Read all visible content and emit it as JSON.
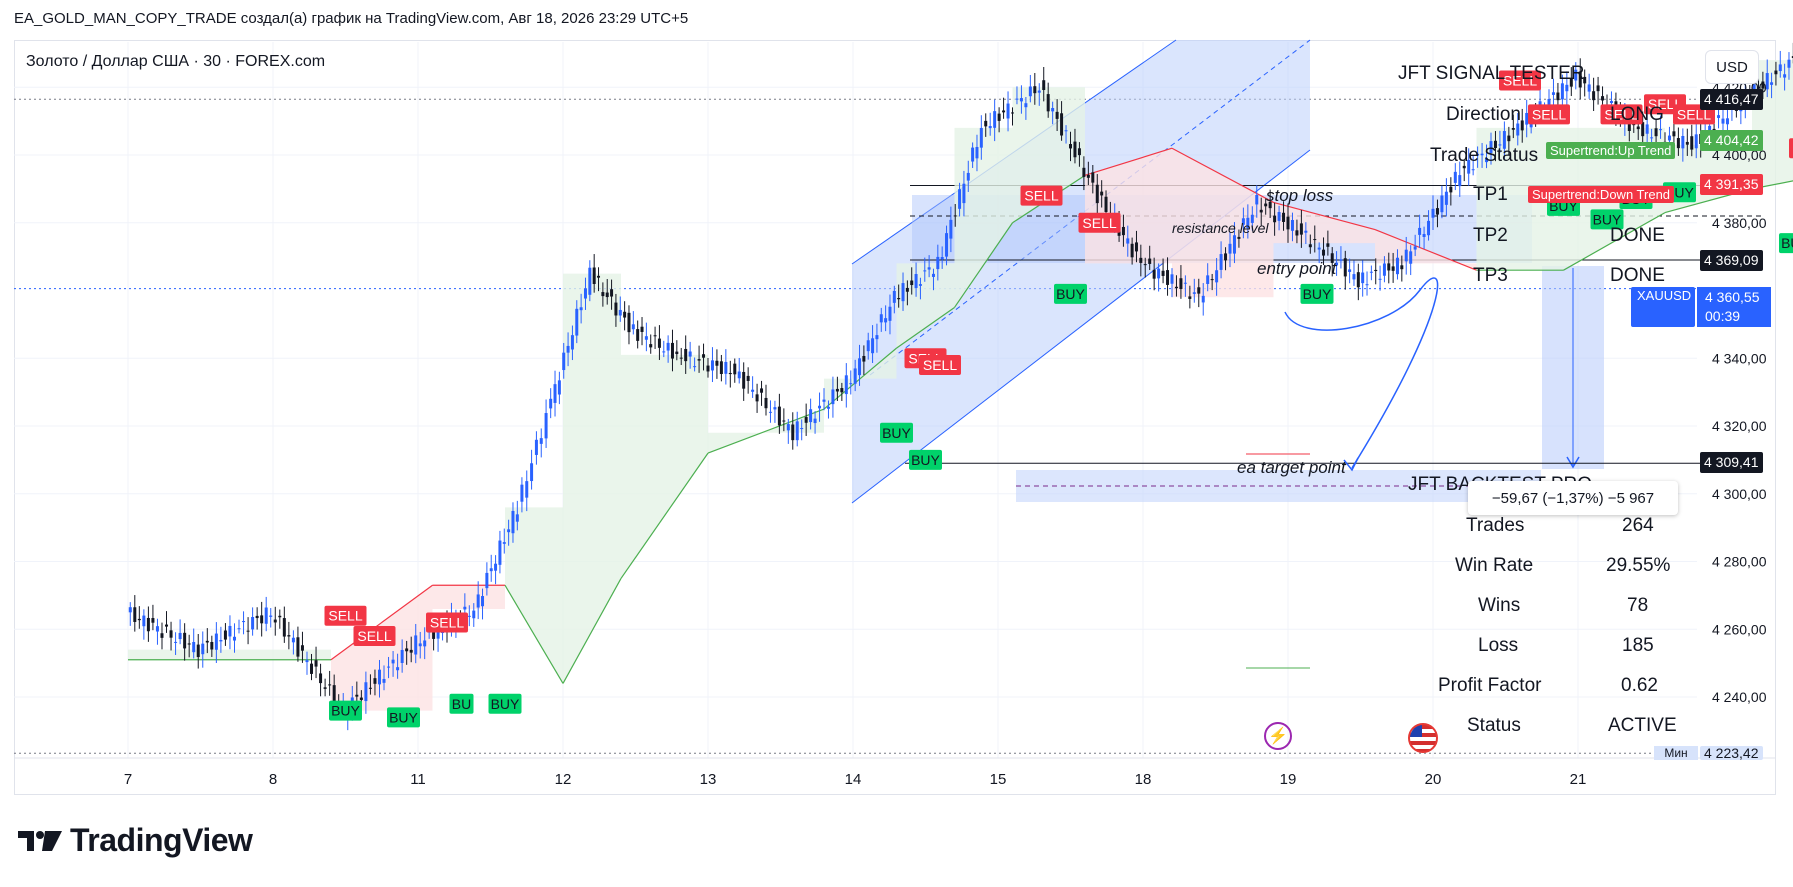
{
  "header": {
    "snapshot_title": "EA_GOLD_MAN_COPY_TRADE создал(а) график на TradingView.com, Авг 18, 2026 23:29 UTC+5",
    "symbol_title": "Золото / Доллар США · 30 · FOREX.com",
    "currency_button": "USD"
  },
  "branding": {
    "logo_text": "TradingView",
    "logo_icon": "tradingview-logo-icon"
  },
  "colors": {
    "up_candle": "#2962ff",
    "down_candle": "#131722",
    "buy": "#00d26a",
    "sell": "#f23645",
    "supertrend_up": "#4caf50",
    "supertrend_down": "#f23645",
    "channel_fill": "#bbd0fb",
    "accent": "#2962ff"
  },
  "chart_data": {
    "type": "candlestick",
    "title": "Золото / Доллар США · 30 · FOREX.com",
    "x_tick_labels": [
      "7",
      "8",
      "11",
      "12",
      "13",
      "14",
      "15",
      "18",
      "19",
      "20",
      "21"
    ],
    "y_tick_labels": [
      "4 420,00",
      "4 400,00",
      "4 380,00",
      "4 340,00",
      "4 320,00",
      "4 300,00",
      "4 280,00",
      "4 260,00",
      "4 240,00"
    ],
    "y_ticks": [
      4420,
      4400,
      4380,
      4340,
      4320,
      4300,
      4280,
      4260,
      4240
    ],
    "ylim": [
      4222,
      4431
    ],
    "grid": true,
    "series": [
      {
        "name": "XAUUSD",
        "kind": "close_path",
        "x": [
          0.0,
          0.5,
          1.0,
          1.5,
          2.0,
          2.4,
          2.7,
          2.9,
          3.2,
          3.5,
          3.8,
          4.2,
          4.6,
          5.0,
          5.3,
          5.6,
          5.9,
          6.3,
          6.7,
          7.0,
          7.4,
          7.8,
          8.2,
          8.5,
          8.8,
          9.2,
          9.6,
          10.0,
          10.4,
          10.8,
          11.2,
          11.5,
          11.7,
          11.85,
          12.0,
          12.3,
          12.6,
          13.0,
          13.4,
          13.8,
          14.1,
          14.4,
          14.7,
          15.0,
          15.3,
          15.7,
          16.0,
          16.4,
          16.7,
          17.0,
          17.3,
          17.6,
          18.0,
          18.3,
          18.6,
          18.9,
          19.2,
          19.5,
          19.8,
          20.1,
          20.4,
          20.7,
          21.0,
          21.3,
          21.5,
          21.8,
          22.1,
          22.4,
          22.7,
          22.9,
          23.1
        ],
        "close": [
          4265,
          4254,
          4265,
          4236,
          4256,
          4266,
          4296,
          4323,
          4365,
          4348,
          4341,
          4336,
          4318,
          4334,
          4358,
          4368,
          4408,
          4420,
          4388,
          4368,
          4358,
          4386,
          4374,
          4363,
          4368,
          4395,
          4408,
          4423,
          4408,
          4403,
          4418,
          4428,
          4403,
          4388,
          4413,
          4398,
          4373,
          4368,
          4354,
          4346,
          4316,
          4310,
          4320,
          4353,
          4385,
          4382,
          4376,
          4389,
          4396,
          4391,
          4396,
          4393,
          4416,
          4426,
          4408,
          4413,
          4418,
          4428,
          4410,
          4398,
          4393,
          4396,
          4393,
          4390,
          4393,
          4383,
          4386,
          4376,
          4358,
          4363,
          4360
        ]
      },
      {
        "name": "Supertrend",
        "kind": "supertrend",
        "x": [
          0.0,
          1.4,
          2.1,
          2.6,
          3.0,
          3.4,
          4.0,
          4.8,
          5.3,
          5.7,
          6.1,
          6.6,
          7.2,
          7.9,
          8.6,
          9.3,
          9.9,
          10.6,
          11.2,
          11.8,
          12.4,
          13.0,
          13.6,
          14.1,
          14.6,
          15.0,
          15.6,
          16.4,
          17.2,
          17.9,
          18.4,
          19.0,
          19.6,
          20.2,
          20.8,
          21.4,
          22.0
        ],
        "values": [
          4251,
          4251,
          4273,
          4273,
          4244,
          4275,
          4312,
          4325,
          4343,
          4355,
          4380,
          4394,
          4402,
          4386,
          4378,
          4366,
          4366,
          4383,
          4390,
          4395,
          4412,
          4419,
          4409,
          4396,
          4380,
          4374,
          4336,
          4336,
          4353,
          4360,
          4369,
          4372,
          4380,
          4386,
          4402,
          4408,
          4396
        ]
      }
    ],
    "signals": [
      {
        "label": "SELL",
        "x": 1.5,
        "y": 4264
      },
      {
        "label": "SELL",
        "x": 1.7,
        "y": 4258
      },
      {
        "label": "SELL",
        "x": 2.2,
        "y": 4262
      },
      {
        "label": "BUY",
        "x": 1.5,
        "y": 4236
      },
      {
        "label": "BUY",
        "x": 1.9,
        "y": 4234
      },
      {
        "label": "BU",
        "x": 2.3,
        "y": 4238
      },
      {
        "label": "BUY",
        "x": 2.6,
        "y": 4238
      },
      {
        "label": "SELL",
        "x": 6.3,
        "y": 4388
      },
      {
        "label": "SELL",
        "x": 6.7,
        "y": 4380
      },
      {
        "label": "BUY",
        "x": 6.5,
        "y": 4359
      },
      {
        "label": "SELL",
        "x": 5.5,
        "y": 4340
      },
      {
        "label": "SELL",
        "x": 5.6,
        "y": 4338
      },
      {
        "label": "BUY",
        "x": 5.3,
        "y": 4318
      },
      {
        "label": "BUY",
        "x": 5.5,
        "y": 4310
      },
      {
        "label": "BUY",
        "x": 8.2,
        "y": 4359
      },
      {
        "label": "SELL",
        "x": 9.6,
        "y": 4422
      },
      {
        "label": "SELL",
        "x": 9.8,
        "y": 4412
      },
      {
        "label": "SELL",
        "x": 10.3,
        "y": 4412
      },
      {
        "label": "SELL",
        "x": 10.6,
        "y": 4415
      },
      {
        "label": "SELL",
        "x": 10.8,
        "y": 4412
      },
      {
        "label": "BUY",
        "x": 9.9,
        "y": 4385
      },
      {
        "label": "BUY",
        "x": 10.2,
        "y": 4381
      },
      {
        "label": "BUY",
        "x": 10.4,
        "y": 4387
      },
      {
        "label": "BUY",
        "x": 10.7,
        "y": 4389
      },
      {
        "label": "SELL",
        "x": 11.6,
        "y": 4402
      },
      {
        "label": "BUY",
        "x": 11.5,
        "y": 4374
      },
      {
        "label": "SELL",
        "x": 13.6,
        "y": 4361
      },
      {
        "label": "BUY",
        "x": 13.4,
        "y": 4335
      },
      {
        "label": "BUY",
        "x": 13.7,
        "y": 4333
      },
      {
        "label": "SELL",
        "x": 15.7,
        "y": 4397
      },
      {
        "label": "BUY",
        "x": 15.8,
        "y": 4376
      },
      {
        "label": "SELL",
        "x": 17.0,
        "y": 4411
      },
      {
        "label": "SELL",
        "x": 17.6,
        "y": 4405
      },
      {
        "label": "BUY",
        "x": 17.5,
        "y": 4390
      }
    ],
    "levels": [
      {
        "label": "stop loss",
        "y": 4391
      },
      {
        "label": "resistance level",
        "y": 4382
      },
      {
        "label": "entry point",
        "y": 4369
      },
      {
        "label": "ea target point",
        "y": 4309
      }
    ]
  },
  "price_scale": {
    "labels": [
      {
        "text": "4 416,47",
        "y": 4416.47,
        "kind": "dark"
      },
      {
        "text": "4 404,42",
        "y": 4404.42,
        "kind": "green"
      },
      {
        "text": "4 391,35",
        "y": 4391.35,
        "kind": "red"
      },
      {
        "text": "4 369,09",
        "y": 4369.09,
        "kind": "dark"
      },
      {
        "text": "4 309,41",
        "y": 4309.41,
        "kind": "dark"
      },
      {
        "text": "4 223,42",
        "y": 4223.42,
        "kind": "light"
      }
    ],
    "symbol_tag": {
      "symbol": "XAUUSD",
      "price": "4 360,55",
      "countdown": "00:39"
    },
    "supertrend_up_label": "Supertrend:Up Trend",
    "supertrend_down_label": "Supertrend:Down Trend",
    "min_label": "Мин"
  },
  "signal_panel": {
    "title": "JFT SIGNAL TESTER",
    "rows": [
      {
        "label": "Direction",
        "value": "LONG"
      },
      {
        "label": "Trade Status",
        "value": ""
      },
      {
        "label": "TP1",
        "value": ""
      },
      {
        "label": "TP2",
        "value": "DONE"
      },
      {
        "label": "TP3",
        "value": "DONE"
      }
    ]
  },
  "backtest_panel": {
    "title": "JFT BACKTEST PRO",
    "rows": [
      {
        "label": "Trades",
        "value": "264"
      },
      {
        "label": "Win Rate",
        "value": "29.55%"
      },
      {
        "label": "Wins",
        "value": "78"
      },
      {
        "label": "Loss",
        "value": "185"
      },
      {
        "label": "Profit Factor",
        "value": "0.62"
      },
      {
        "label": "Status",
        "value": "ACTIVE"
      }
    ]
  },
  "measure_box": {
    "text": "−59,67 (−1,37%) −5 967"
  }
}
